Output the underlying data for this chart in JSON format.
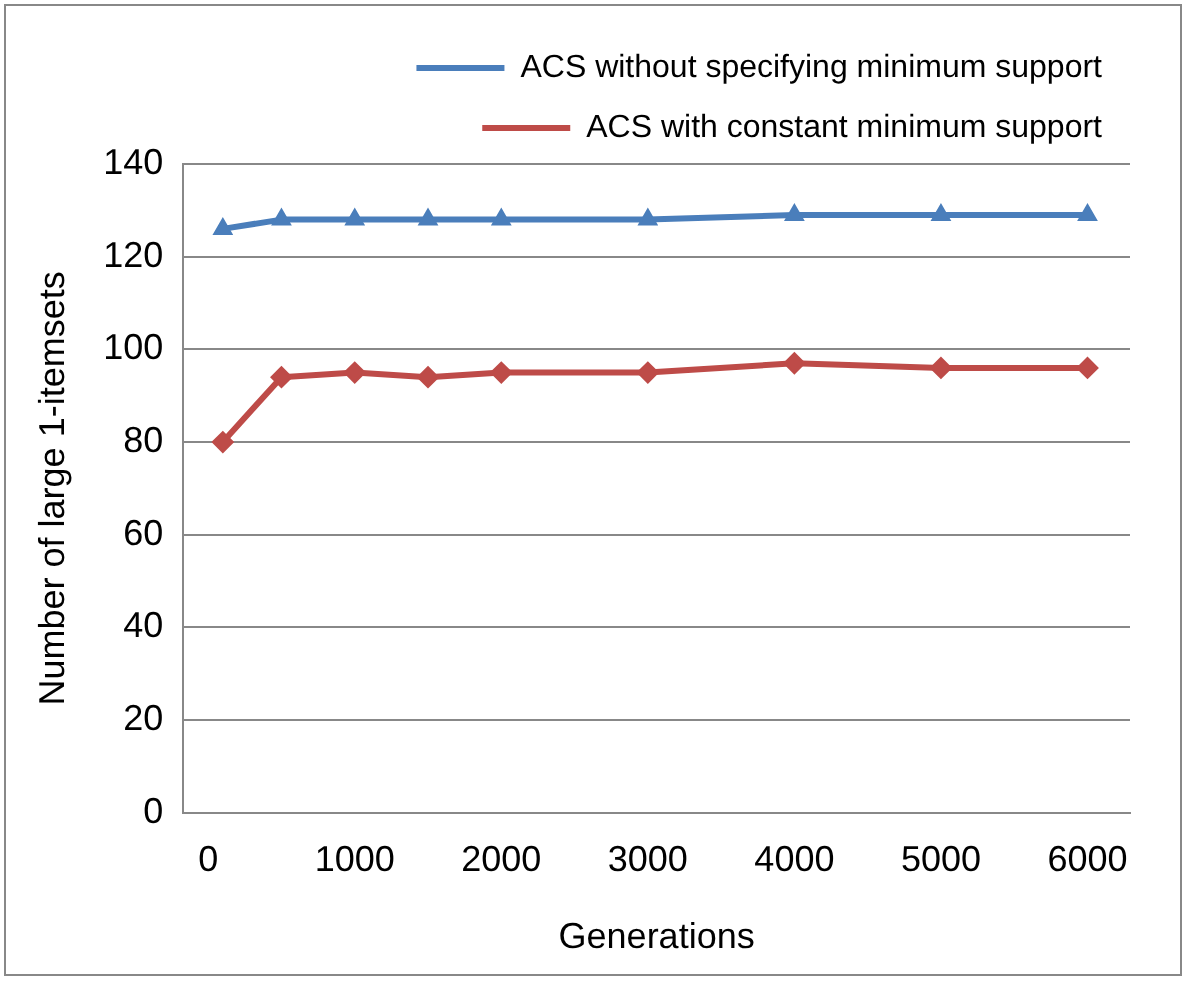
{
  "chart_data": {
    "type": "line",
    "xlabel": "Generations",
    "ylabel": "Number of large 1-itemsets",
    "series": [
      {
        "name": "ACS without specifying minimum support",
        "color": "#4a7ebb",
        "x": [
          100,
          500,
          1000,
          1500,
          2000,
          3000,
          4000,
          5000,
          6000
        ],
        "values": [
          126,
          128,
          128,
          128,
          128,
          128,
          129,
          129,
          129
        ],
        "marker": "triangle"
      },
      {
        "name": "ACS with constant minimum support",
        "color": "#be4b48",
        "x": [
          100,
          500,
          1000,
          1500,
          2000,
          3000,
          4000,
          5000,
          6000
        ],
        "values": [
          80,
          94,
          95,
          94,
          95,
          95,
          97,
          96,
          96
        ],
        "marker": "diamond"
      }
    ],
    "xlim": [
      -170,
      6290
    ],
    "xticks": [
      0,
      1000,
      2000,
      3000,
      4000,
      5000,
      6000
    ],
    "ylim": [
      0,
      140
    ],
    "yticks": [
      0,
      20,
      40,
      60,
      80,
      100,
      120,
      140
    ],
    "grid": "y",
    "legend": "top"
  }
}
